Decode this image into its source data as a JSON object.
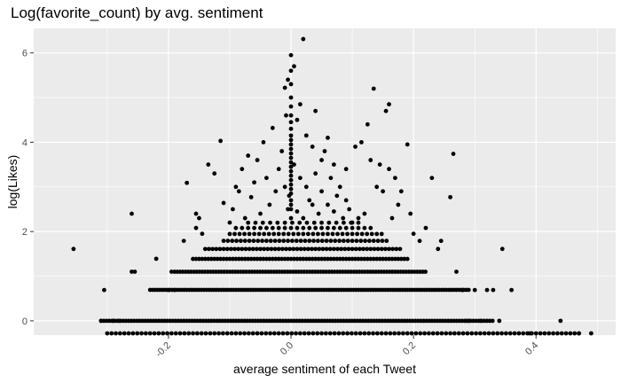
{
  "chart_data": {
    "type": "scatter",
    "title": "Log(favorite_count) by avg. sentiment",
    "xlabel": "average sentiment of each Tweet",
    "ylabel": "log(Likes)",
    "xlim": [
      -0.42,
      0.53
    ],
    "ylim": [
      -0.32,
      6.55
    ],
    "x_ticks": [
      -0.2,
      0.0,
      0.2,
      0.4
    ],
    "x_tick_labels": [
      "-0.2",
      "0.0",
      "0.2",
      "0.4"
    ],
    "y_ticks": [
      0,
      2,
      4,
      6
    ],
    "y_tick_labels": [
      "0",
      "2",
      "4",
      "6"
    ],
    "grid": true,
    "legend": "none",
    "panel_background": "#ebebeb",
    "point_color": "#000000",
    "bands": [
      {
        "y": -0.32,
        "x_from": -0.3,
        "x_to": 0.47,
        "step": 0.007
      },
      {
        "y": 0.0,
        "x_from": -0.31,
        "x_to": 0.33,
        "step": 0.0045
      },
      {
        "y": 0.693,
        "x_from": -0.23,
        "x_to": 0.29,
        "step": 0.004
      },
      {
        "y": 1.099,
        "x_from": -0.19,
        "x_to": 0.22,
        "step": 0.0045
      },
      {
        "y": 1.386,
        "x_from": -0.16,
        "x_to": 0.19,
        "step": 0.005
      },
      {
        "y": 1.609,
        "x_from": -0.14,
        "x_to": 0.18,
        "step": 0.006
      },
      {
        "y": 1.792,
        "x_from": -0.11,
        "x_to": 0.16,
        "step": 0.007
      },
      {
        "y": 1.946,
        "x_from": -0.1,
        "x_to": 0.15,
        "step": 0.008
      },
      {
        "y": 2.079,
        "x_from": -0.09,
        "x_to": 0.13,
        "step": 0.01
      },
      {
        "y": 2.197,
        "x_from": -0.07,
        "x_to": 0.12,
        "step": 0.012
      }
    ],
    "points": [
      [
        -0.355,
        1.61
      ],
      [
        -0.305,
        0.69
      ],
      [
        -0.31,
        0.0
      ],
      [
        -0.29,
        0.0
      ],
      [
        -0.28,
        0.0
      ],
      [
        -0.26,
        1.1
      ],
      [
        -0.255,
        1.1
      ],
      [
        -0.26,
        2.4
      ],
      [
        -0.22,
        1.39
      ],
      [
        -0.2,
        0.69
      ],
      [
        -0.19,
        0.69
      ],
      [
        -0.195,
        1.1
      ],
      [
        -0.175,
        1.79
      ],
      [
        -0.17,
        3.09
      ],
      [
        -0.155,
        2.4
      ],
      [
        -0.15,
        2.3
      ],
      [
        -0.155,
        2.08
      ],
      [
        -0.145,
        1.95
      ],
      [
        -0.135,
        3.5
      ],
      [
        -0.125,
        3.3
      ],
      [
        -0.115,
        4.03
      ],
      [
        -0.11,
        2.64
      ],
      [
        -0.1,
        2.2
      ],
      [
        -0.095,
        2.5
      ],
      [
        -0.09,
        3.0
      ],
      [
        -0.085,
        2.9
      ],
      [
        -0.08,
        3.4
      ],
      [
        -0.075,
        2.3
      ],
      [
        -0.07,
        3.7
      ],
      [
        -0.065,
        2.77
      ],
      [
        -0.06,
        3.1
      ],
      [
        -0.055,
        3.6
      ],
      [
        -0.05,
        2.4
      ],
      [
        -0.045,
        4.0
      ],
      [
        -0.04,
        3.2
      ],
      [
        -0.035,
        2.6
      ],
      [
        -0.03,
        4.32
      ],
      [
        -0.025,
        2.9
      ],
      [
        -0.02,
        3.4
      ],
      [
        -0.015,
        3.8
      ],
      [
        -0.01,
        5.22
      ],
      [
        -0.005,
        2.5
      ],
      [
        -0.01,
        3.0
      ],
      [
        -0.005,
        5.4
      ],
      [
        -0.008,
        4.6
      ],
      [
        -0.003,
        2.8
      ],
      [
        0.0,
        2.3
      ],
      [
        0.0,
        2.5
      ],
      [
        0.0,
        2.6
      ],
      [
        0.0,
        2.7
      ],
      [
        0.0,
        2.85
      ],
      [
        0.0,
        2.95
      ],
      [
        0.0,
        3.05
      ],
      [
        0.0,
        3.15
      ],
      [
        0.0,
        3.25
      ],
      [
        0.0,
        3.35
      ],
      [
        0.0,
        3.45
      ],
      [
        0.0,
        3.55
      ],
      [
        0.0,
        3.65
      ],
      [
        0.0,
        3.75
      ],
      [
        0.0,
        3.85
      ],
      [
        0.0,
        3.95
      ],
      [
        0.0,
        4.05
      ],
      [
        0.0,
        4.15
      ],
      [
        0.0,
        4.3
      ],
      [
        0.0,
        4.45
      ],
      [
        0.0,
        4.6
      ],
      [
        0.0,
        4.8
      ],
      [
        0.0,
        5.0
      ],
      [
        0.0,
        5.3
      ],
      [
        0.0,
        5.6
      ],
      [
        0.0,
        5.95
      ],
      [
        0.005,
        5.7
      ],
      [
        0.005,
        3.5
      ],
      [
        0.01,
        4.5
      ],
      [
        0.01,
        2.45
      ],
      [
        0.015,
        3.2
      ],
      [
        0.015,
        4.85
      ],
      [
        0.02,
        2.3
      ],
      [
        0.02,
        6.31
      ],
      [
        0.025,
        3.0
      ],
      [
        0.025,
        4.15
      ],
      [
        0.03,
        2.7
      ],
      [
        0.035,
        3.9
      ],
      [
        0.035,
        2.6
      ],
      [
        0.04,
        3.3
      ],
      [
        0.04,
        4.7
      ],
      [
        0.045,
        2.4
      ],
      [
        0.05,
        3.6
      ],
      [
        0.05,
        2.9
      ],
      [
        0.055,
        3.8
      ],
      [
        0.06,
        2.6
      ],
      [
        0.06,
        4.1
      ],
      [
        0.065,
        3.2
      ],
      [
        0.07,
        2.45
      ],
      [
        0.07,
        3.5
      ],
      [
        0.075,
        2.8
      ],
      [
        0.08,
        3.0
      ],
      [
        0.085,
        2.3
      ],
      [
        0.09,
        2.7
      ],
      [
        0.09,
        3.4
      ],
      [
        0.095,
        2.5
      ],
      [
        0.1,
        2.2
      ],
      [
        0.105,
        3.9
      ],
      [
        0.11,
        2.3
      ],
      [
        0.115,
        4.0
      ],
      [
        0.12,
        2.4
      ],
      [
        0.125,
        4.4
      ],
      [
        0.13,
        3.6
      ],
      [
        0.135,
        5.2
      ],
      [
        0.14,
        3.0
      ],
      [
        0.145,
        3.5
      ],
      [
        0.15,
        2.9
      ],
      [
        0.155,
        4.7
      ],
      [
        0.16,
        4.85
      ],
      [
        0.16,
        3.4
      ],
      [
        0.165,
        2.3
      ],
      [
        0.17,
        3.2
      ],
      [
        0.175,
        2.6
      ],
      [
        0.18,
        2.9
      ],
      [
        0.19,
        3.95
      ],
      [
        0.195,
        2.4
      ],
      [
        0.2,
        1.95
      ],
      [
        0.21,
        1.79
      ],
      [
        0.22,
        2.08
      ],
      [
        0.23,
        3.2
      ],
      [
        0.24,
        1.61
      ],
      [
        0.245,
        1.79
      ],
      [
        0.26,
        2.77
      ],
      [
        0.265,
        3.74
      ],
      [
        0.27,
        1.1
      ],
      [
        0.28,
        0.69
      ],
      [
        0.285,
        0.0
      ],
      [
        0.29,
        0.0
      ],
      [
        0.3,
        0.69
      ],
      [
        0.31,
        0.0
      ],
      [
        0.32,
        0.69
      ],
      [
        0.33,
        0.69
      ],
      [
        0.34,
        0.0
      ],
      [
        0.345,
        1.61
      ],
      [
        0.36,
        0.69
      ],
      [
        0.39,
        -0.32
      ],
      [
        0.44,
        0.0
      ],
      [
        0.47,
        -0.32
      ],
      [
        0.49,
        -0.32
      ]
    ]
  }
}
